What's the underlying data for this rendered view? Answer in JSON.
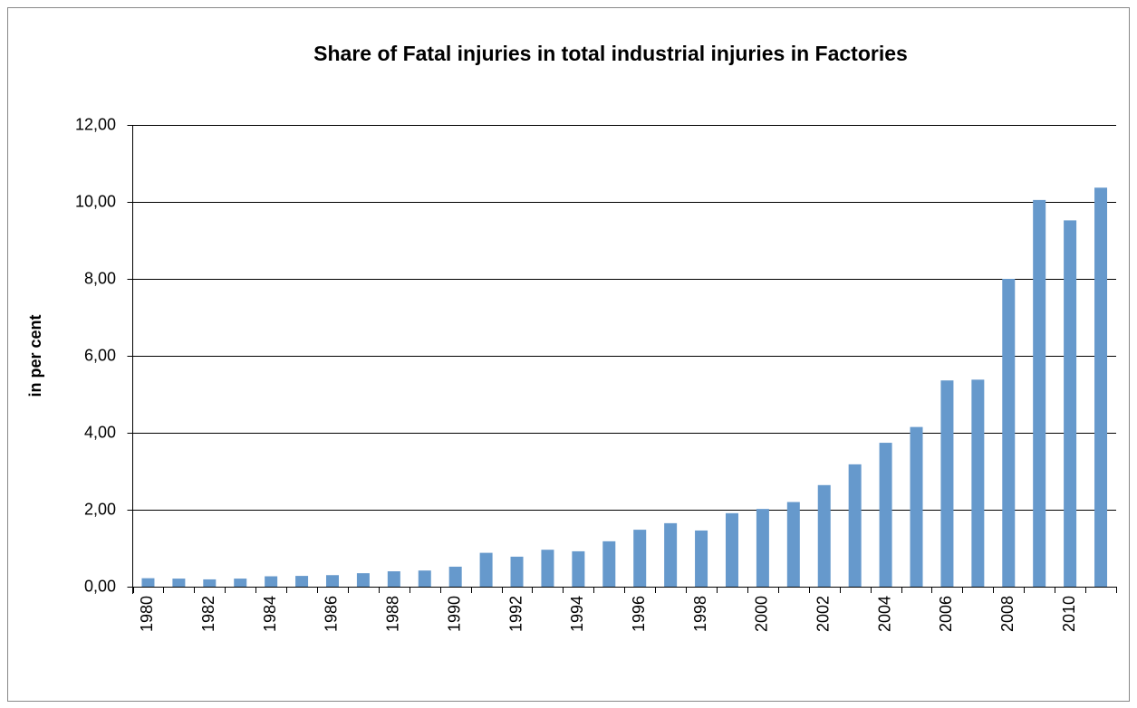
{
  "chart_data": {
    "type": "bar",
    "title": "Share of Fatal injuries in total industrial injuries in Factories",
    "y_label": "in per cent",
    "categories": [
      "1980",
      null,
      "1982",
      null,
      "1984",
      null,
      "1986",
      null,
      "1988",
      null,
      "1990",
      null,
      "1992",
      null,
      "1994",
      null,
      "1996",
      null,
      "1998",
      null,
      "2000",
      null,
      "2002",
      null,
      "2004",
      null,
      "2006",
      null,
      "2008",
      null,
      "2010",
      null
    ],
    "values": [
      0.22,
      0.21,
      0.19,
      0.21,
      0.27,
      0.28,
      0.3,
      0.35,
      0.4,
      0.42,
      0.52,
      0.88,
      0.78,
      0.96,
      0.92,
      1.18,
      1.48,
      1.65,
      1.46,
      1.91,
      2.02,
      2.2,
      2.64,
      3.18,
      3.74,
      4.15,
      5.36,
      5.38,
      8.0,
      10.05,
      9.52,
      10.37
    ],
    "color": "#6699cc",
    "ylim": [
      0,
      12
    ],
    "yticks": [
      {
        "value": 0,
        "label": "0,00"
      },
      {
        "value": 2,
        "label": "2,00"
      },
      {
        "value": 4,
        "label": "4,00"
      },
      {
        "value": 6,
        "label": "6,00"
      },
      {
        "value": 8,
        "label": "8,00"
      },
      {
        "value": 10,
        "label": "10,00"
      },
      {
        "value": 12,
        "label": "12,00"
      }
    ],
    "grid": true
  }
}
